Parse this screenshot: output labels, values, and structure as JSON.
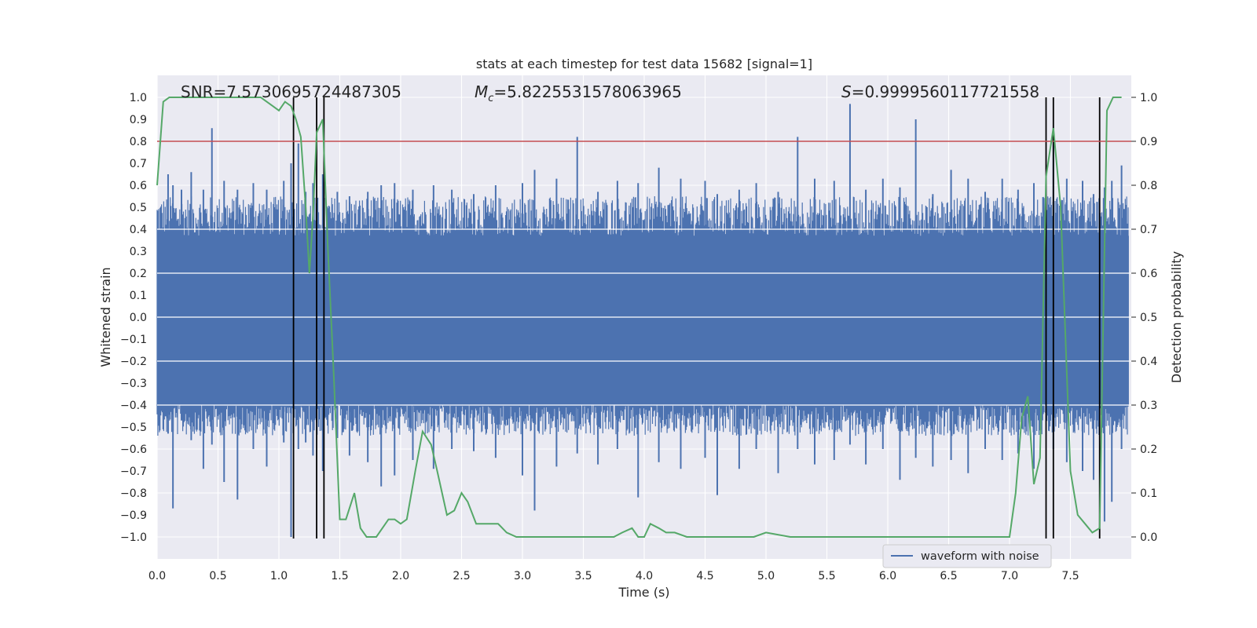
{
  "chart_data": {
    "type": "line",
    "title": "stats at each timestep for test data 15682 [signal=1]",
    "xlabel": "Time (s)",
    "ylabel_left": "Whitened strain",
    "ylabel_right": "Detection probability",
    "xlim": [
      0.0,
      8.0
    ],
    "ylim_left": [
      -1.1,
      1.1
    ],
    "ylim_right": [
      -0.05,
      1.05
    ],
    "x_ticks": [
      "0.0",
      "0.5",
      "1.0",
      "1.5",
      "2.0",
      "2.5",
      "3.0",
      "3.5",
      "4.0",
      "4.5",
      "5.0",
      "5.5",
      "6.0",
      "6.5",
      "7.0",
      "7.5"
    ],
    "y_left_ticks": [
      "−1.0",
      "−0.9",
      "−0.8",
      "−0.7",
      "−0.6",
      "−0.5",
      "−0.4",
      "−0.3",
      "−0.2",
      "−0.1",
      "0.0",
      "0.1",
      "0.2",
      "0.3",
      "0.4",
      "0.5",
      "0.6",
      "0.7",
      "0.8",
      "0.9",
      "1.0"
    ],
    "y_right_ticks": [
      "0.0",
      "0.1",
      "0.2",
      "0.3",
      "0.4",
      "0.5",
      "0.6",
      "0.7",
      "0.8",
      "0.9",
      "1.0"
    ],
    "grid": true,
    "annotations": {
      "snr": "SNR=7.5730695724487305",
      "mc_symbol": "M",
      "mc_sub": "c",
      "mc_value": "=5.8225531578063965",
      "s_symbol": "S",
      "s_value": "=0.9999560117721558"
    },
    "threshold": {
      "value": 0.9,
      "axis": "right",
      "color": "#c44e52"
    },
    "vertical_lines": [
      1.12,
      1.31,
      1.37,
      7.3,
      7.36,
      7.74
    ],
    "waveform": {
      "name": "waveform with noise",
      "color": "#4c72b0",
      "envelope": [
        0.37,
        -0.4
      ],
      "spikes": [
        [
          0.09,
          0.65,
          -0.53
        ],
        [
          0.13,
          0.6,
          -0.87
        ],
        [
          0.2,
          0.58,
          -0.47
        ],
        [
          0.28,
          0.66,
          -0.56
        ],
        [
          0.38,
          0.58,
          -0.69
        ],
        [
          0.45,
          0.86,
          -0.58
        ],
        [
          0.55,
          0.62,
          -0.75
        ],
        [
          0.66,
          0.58,
          -0.83
        ],
        [
          0.79,
          0.61,
          -0.6
        ],
        [
          0.9,
          0.58,
          -0.68
        ],
        [
          1.04,
          0.62,
          -0.57
        ],
        [
          1.1,
          0.7,
          -1.0
        ],
        [
          1.16,
          0.79,
          -0.6
        ],
        [
          1.22,
          0.57,
          -0.57
        ],
        [
          1.28,
          0.61,
          -0.63
        ],
        [
          1.36,
          0.65,
          -0.7
        ],
        [
          1.48,
          0.57,
          -0.55
        ],
        [
          1.58,
          0.55,
          -0.63
        ],
        [
          1.73,
          0.57,
          -0.66
        ],
        [
          1.84,
          0.6,
          -0.77
        ],
        [
          1.95,
          0.61,
          -0.72
        ],
        [
          2.1,
          0.58,
          -0.65
        ],
        [
          2.27,
          0.6,
          -0.69
        ],
        [
          2.42,
          0.58,
          -0.6
        ],
        [
          2.6,
          0.56,
          -0.61
        ],
        [
          2.78,
          0.6,
          -0.64
        ],
        [
          3.0,
          0.61,
          -0.72
        ],
        [
          3.1,
          0.67,
          -0.88
        ],
        [
          3.28,
          0.63,
          -0.68
        ],
        [
          3.45,
          0.82,
          -0.62
        ],
        [
          3.62,
          0.57,
          -0.67
        ],
        [
          3.78,
          0.62,
          -0.6
        ],
        [
          3.95,
          0.61,
          -0.82
        ],
        [
          4.12,
          0.68,
          -0.66
        ],
        [
          4.3,
          0.63,
          -0.69
        ],
        [
          4.5,
          0.62,
          -0.64
        ],
        [
          4.6,
          0.56,
          -0.81
        ],
        [
          4.78,
          0.58,
          -0.69
        ],
        [
          4.92,
          0.61,
          -0.6
        ],
        [
          5.1,
          0.57,
          -0.71
        ],
        [
          5.26,
          0.82,
          -0.6
        ],
        [
          5.4,
          0.63,
          -0.67
        ],
        [
          5.56,
          0.62,
          -0.65
        ],
        [
          5.69,
          0.97,
          -0.58
        ],
        [
          5.82,
          0.58,
          -0.67
        ],
        [
          5.96,
          0.63,
          -0.6
        ],
        [
          6.1,
          0.59,
          -0.74
        ],
        [
          6.23,
          0.9,
          -0.64
        ],
        [
          6.37,
          0.56,
          -0.68
        ],
        [
          6.52,
          0.67,
          -0.65
        ],
        [
          6.66,
          0.63,
          -0.71
        ],
        [
          6.8,
          0.57,
          -0.6
        ],
        [
          6.94,
          0.63,
          -0.65
        ],
        [
          7.07,
          0.58,
          -0.62
        ],
        [
          7.2,
          0.61,
          -0.69
        ],
        [
          7.36,
          0.83,
          -0.6
        ],
        [
          7.47,
          0.63,
          -0.66
        ],
        [
          7.6,
          0.62,
          -0.7
        ],
        [
          7.69,
          0.56,
          -0.74
        ],
        [
          7.78,
          0.59,
          -0.93
        ],
        [
          7.84,
          0.62,
          -0.84
        ],
        [
          7.92,
          0.69,
          -0.6
        ]
      ]
    },
    "probability": {
      "color": "#55a868",
      "x": [
        0.0,
        0.05,
        0.1,
        0.2,
        0.4,
        0.6,
        0.85,
        0.95,
        1.0,
        1.05,
        1.1,
        1.14,
        1.18,
        1.22,
        1.25,
        1.28,
        1.31,
        1.36,
        1.4,
        1.45,
        1.5,
        1.55,
        1.62,
        1.67,
        1.72,
        1.8,
        1.9,
        1.95,
        2.0,
        2.05,
        2.12,
        2.18,
        2.25,
        2.3,
        2.38,
        2.44,
        2.5,
        2.55,
        2.62,
        2.7,
        2.8,
        2.87,
        2.95,
        3.0,
        3.3,
        3.5,
        3.75,
        3.82,
        3.9,
        3.95,
        4.0,
        4.05,
        4.12,
        4.18,
        4.25,
        4.35,
        4.5,
        4.7,
        4.9,
        5.0,
        5.2,
        5.5,
        5.8,
        6.2,
        6.5,
        6.7,
        6.85,
        6.95,
        7.0,
        7.05,
        7.1,
        7.15,
        7.2,
        7.25,
        7.3,
        7.36,
        7.42,
        7.5,
        7.56,
        7.62,
        7.68,
        7.74,
        7.8,
        7.85,
        7.92
      ],
      "y": [
        0.8,
        0.99,
        1.0,
        1.0,
        1.0,
        1.0,
        1.0,
        0.98,
        0.97,
        0.99,
        0.98,
        0.95,
        0.91,
        0.75,
        0.6,
        0.73,
        0.92,
        0.95,
        0.67,
        0.37,
        0.04,
        0.04,
        0.1,
        0.02,
        0.0,
        0.0,
        0.04,
        0.04,
        0.03,
        0.04,
        0.15,
        0.24,
        0.21,
        0.15,
        0.05,
        0.06,
        0.1,
        0.08,
        0.03,
        0.03,
        0.03,
        0.01,
        0.0,
        0.0,
        0.0,
        0.0,
        0.0,
        0.01,
        0.02,
        0.0,
        0.0,
        0.03,
        0.02,
        0.01,
        0.01,
        0.0,
        0.0,
        0.0,
        0.0,
        0.01,
        0.0,
        0.0,
        0.0,
        0.0,
        0.0,
        0.0,
        0.0,
        0.0,
        0.0,
        0.1,
        0.27,
        0.32,
        0.12,
        0.18,
        0.82,
        0.93,
        0.75,
        0.15,
        0.05,
        0.03,
        0.01,
        0.02,
        0.97,
        1.0,
        1.0
      ]
    },
    "legend": {
      "position": "lower-right",
      "entries": [
        "waveform with noise"
      ]
    }
  }
}
